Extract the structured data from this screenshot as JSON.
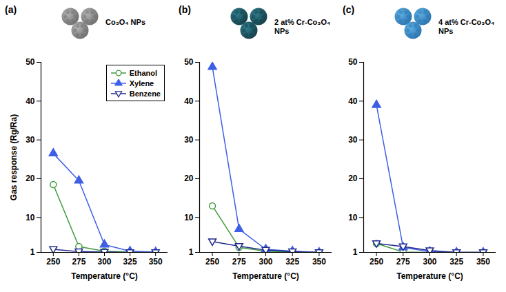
{
  "chart_data": [
    {
      "type": "line",
      "title": "(a)",
      "subtitle": "Co₃O₄ NPs",
      "x_label": "Temperature (°C)",
      "y_label": "Gas response (Rg/Ra)",
      "x": [
        250,
        275,
        300,
        325,
        350
      ],
      "xlim": [
        238,
        362
      ],
      "xticks": [
        250,
        275,
        300,
        325,
        350
      ],
      "ylim": [
        1,
        50
      ],
      "yticks": [
        1,
        10,
        20,
        30,
        40,
        50
      ],
      "legend": "top-right",
      "series": [
        {
          "name": "Ethanol",
          "color": "#3c9b3c",
          "marker": "circle-open",
          "values": [
            18.5,
            2.5,
            1.3,
            1.1,
            1.0
          ]
        },
        {
          "name": "Xylene",
          "color": "#3d5fe6",
          "marker": "triangle",
          "values": [
            26.5,
            19.5,
            3.0,
            1.3,
            1.1
          ]
        },
        {
          "name": "Benzene",
          "color": "#1f2a8c",
          "marker": "triangle-down-open",
          "values": [
            1.8,
            1.2,
            1.1,
            1.0,
            1.0
          ]
        }
      ]
    },
    {
      "type": "line",
      "title": "(b)",
      "subtitle": "2 at% Cr-Co₃O₄ NPs",
      "x_label": "Temperature (°C)",
      "x": [
        250,
        275,
        300,
        325,
        350
      ],
      "xlim": [
        238,
        362
      ],
      "xticks": [
        250,
        275,
        300,
        325,
        350
      ],
      "ylim": [
        1,
        50
      ],
      "yticks": [
        1,
        10,
        20,
        30,
        40,
        50
      ],
      "series": [
        {
          "name": "Ethanol",
          "color": "#3c9b3c",
          "marker": "circle-open",
          "values": [
            13.0,
            2.3,
            1.3,
            1.1,
            1.0
          ]
        },
        {
          "name": "Xylene",
          "color": "#3d5fe6",
          "marker": "triangle",
          "values": [
            48.8,
            7.0,
            1.8,
            1.3,
            1.0
          ]
        },
        {
          "name": "Benzene",
          "color": "#1f2a8c",
          "marker": "triangle-down-open",
          "values": [
            3.8,
            2.6,
            1.6,
            1.2,
            1.0
          ]
        }
      ]
    },
    {
      "type": "line",
      "title": "(c)",
      "subtitle": "4 at% Cr-Co₃O₄ NPs",
      "x_label": "Temperature (°C)",
      "x": [
        250,
        275,
        300,
        325,
        350
      ],
      "xlim": [
        238,
        362
      ],
      "xticks": [
        250,
        275,
        300,
        325,
        350
      ],
      "ylim": [
        1,
        50
      ],
      "yticks": [
        1,
        10,
        20,
        30,
        40,
        50
      ],
      "series": [
        {
          "name": "Ethanol",
          "color": "#3c9b3c",
          "marker": "circle-open",
          "values": [
            3.3,
            1.1,
            1.0,
            1.0,
            1.0
          ]
        },
        {
          "name": "Xylene",
          "color": "#3d5fe6",
          "marker": "triangle",
          "values": [
            39.0,
            2.3,
            1.2,
            1.0,
            1.0
          ]
        },
        {
          "name": "Benzene",
          "color": "#1f2a8c",
          "marker": "triangle-down-open",
          "values": [
            3.3,
            2.5,
            1.5,
            1.0,
            1.0
          ]
        }
      ]
    }
  ]
}
